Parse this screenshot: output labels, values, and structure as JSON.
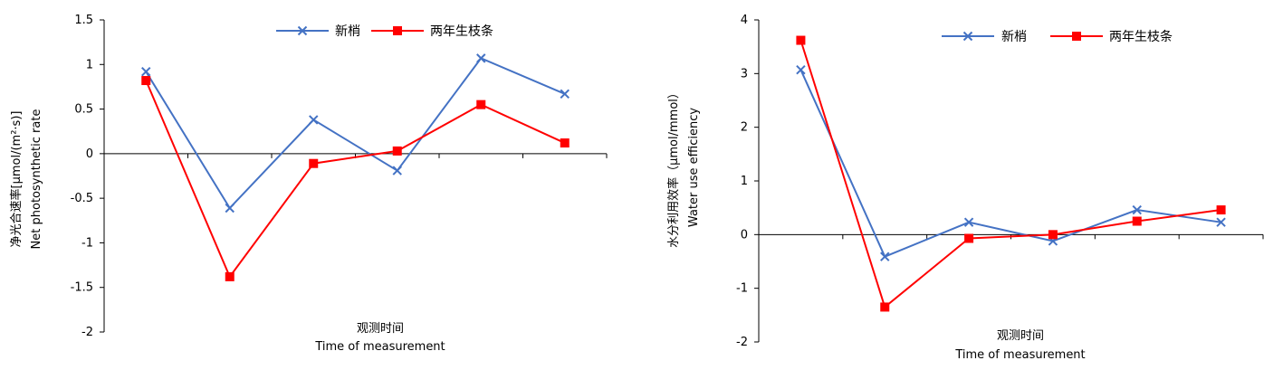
{
  "chart_data": [
    {
      "type": "line",
      "title": "",
      "xlabel_cn": "观测时间",
      "xlabel_en": "Time of measurement",
      "ylabel_cn": "净光合速率[μmol/(m²·s)]",
      "ylabel_en": "Net photosynthetic rate",
      "ylim": [
        -2,
        1.5
      ],
      "yticks": [
        "1.5",
        "1",
        "0.5",
        "0",
        "-0.5",
        "-1",
        "-1.5",
        "-2"
      ],
      "x": [
        1,
        2,
        3,
        4,
        5,
        6
      ],
      "grid": false,
      "legend_position": "top",
      "series": [
        {
          "name": "新梢",
          "color": "#4472c4",
          "marker": "x",
          "values": [
            0.92,
            -0.61,
            0.38,
            -0.19,
            1.07,
            0.67
          ]
        },
        {
          "name": "两年生枝条",
          "color": "#ff0000",
          "marker": "square",
          "values": [
            0.82,
            -1.38,
            -0.11,
            0.03,
            0.55,
            0.12
          ]
        }
      ]
    },
    {
      "type": "line",
      "title": "",
      "xlabel_cn": "观测时间",
      "xlabel_en": "Time of measurement",
      "ylabel_cn": "水分利用效率（μmol/mmol）",
      "ylabel_en": "Water use efficiency",
      "ylim": [
        -2,
        4
      ],
      "yticks": [
        "4",
        "3",
        "2",
        "1",
        "0",
        "-1",
        "-2"
      ],
      "x": [
        1,
        2,
        3,
        4,
        5,
        6
      ],
      "grid": false,
      "legend_position": "top",
      "series": [
        {
          "name": "新梢",
          "color": "#4472c4",
          "marker": "x",
          "values": [
            3.07,
            -0.41,
            0.23,
            -0.12,
            0.46,
            0.23
          ]
        },
        {
          "name": "两年生枝条",
          "color": "#ff0000",
          "marker": "square",
          "values": [
            3.62,
            -1.35,
            -0.07,
            0.0,
            0.25,
            0.46
          ]
        }
      ]
    }
  ]
}
